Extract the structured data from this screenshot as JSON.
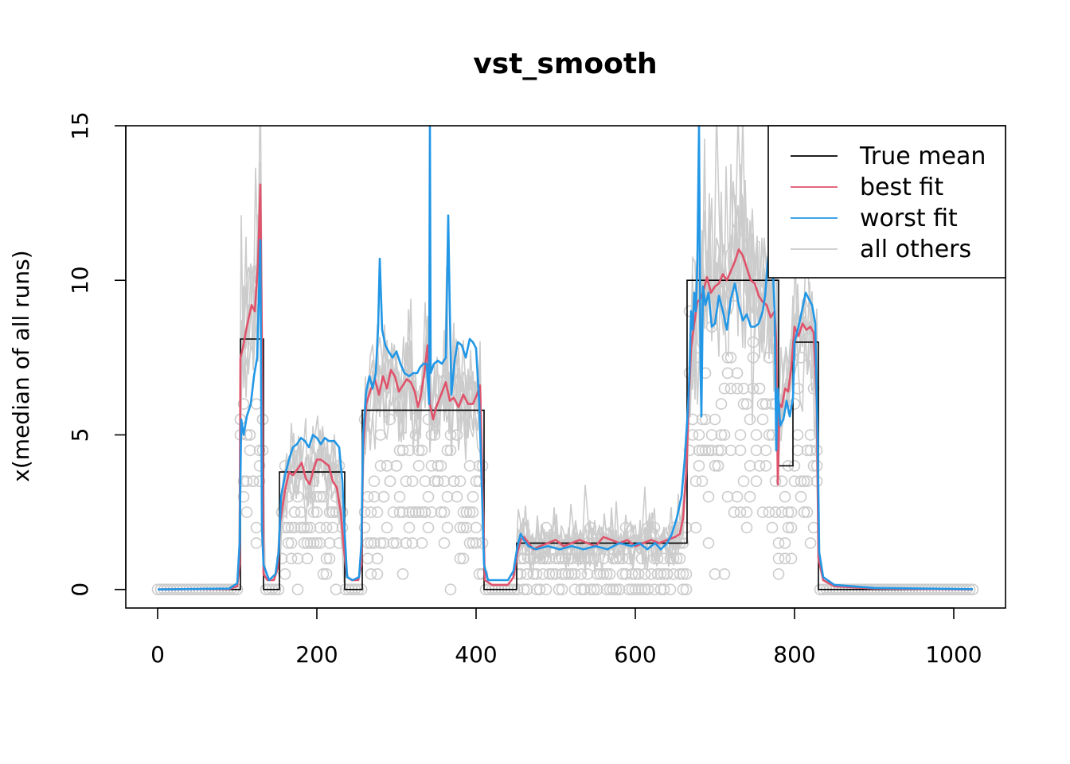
{
  "chart_data": {
    "type": "line",
    "title": "vst_smooth",
    "xlabel": "",
    "ylabel": "x(median of all runs)",
    "xlim": [
      -40,
      1065
    ],
    "ylim": [
      -0.6,
      15
    ],
    "x_ticks": [
      0,
      200,
      400,
      600,
      800,
      1000
    ],
    "y_ticks": [
      0,
      5,
      10,
      15
    ],
    "grid": false,
    "legend": {
      "position": "top-right",
      "entries": [
        "True mean",
        "best fit",
        "worst fit",
        "all others"
      ]
    },
    "colors": {
      "true_mean": "#000000",
      "best_fit": "#DF536B",
      "worst_fit": "#2297E6",
      "others": "#cccccc"
    },
    "true_mean": [
      [
        0,
        0
      ],
      [
        104,
        0
      ],
      [
        104,
        8.1
      ],
      [
        133,
        8.1
      ],
      [
        133,
        0
      ],
      [
        153,
        0
      ],
      [
        153,
        3.8
      ],
      [
        235,
        3.8
      ],
      [
        235,
        0
      ],
      [
        257,
        0
      ],
      [
        257,
        5.8
      ],
      [
        410,
        5.8
      ],
      [
        410,
        0
      ],
      [
        451,
        0
      ],
      [
        451,
        1.5
      ],
      [
        665,
        1.5
      ],
      [
        665,
        10
      ],
      [
        780,
        10
      ],
      [
        780,
        4
      ],
      [
        798,
        4
      ],
      [
        798,
        8
      ],
      [
        830,
        8
      ],
      [
        830,
        0
      ],
      [
        1024,
        0
      ]
    ],
    "series": [
      {
        "name": "best fit",
        "values": [
          [
            0,
            0
          ],
          [
            90,
            0.02
          ],
          [
            100,
            0.1
          ],
          [
            103,
            0.8
          ],
          [
            104,
            7.5
          ],
          [
            107,
            7.8
          ],
          [
            112,
            8.5
          ],
          [
            118,
            9.2
          ],
          [
            122,
            9.0
          ],
          [
            126,
            10.5
          ],
          [
            129,
            13.1
          ],
          [
            131,
            8.0
          ],
          [
            133,
            0.5
          ],
          [
            138,
            0.3
          ],
          [
            146,
            0.3
          ],
          [
            151,
            0.7
          ],
          [
            154,
            2.2
          ],
          [
            160,
            3.2
          ],
          [
            165,
            3.8
          ],
          [
            170,
            3.7
          ],
          [
            176,
            3.9
          ],
          [
            181,
            4.1
          ],
          [
            186,
            3.6
          ],
          [
            191,
            3.4
          ],
          [
            196,
            3.9
          ],
          [
            200,
            4.2
          ],
          [
            205,
            4.2
          ],
          [
            210,
            4.1
          ],
          [
            215,
            4.0
          ],
          [
            220,
            3.5
          ],
          [
            225,
            3.3
          ],
          [
            230,
            2.5
          ],
          [
            234,
            1.3
          ],
          [
            238,
            0.4
          ],
          [
            244,
            0.3
          ],
          [
            252,
            0.3
          ],
          [
            256,
            0.8
          ],
          [
            258,
            4.5
          ],
          [
            262,
            6.0
          ],
          [
            268,
            6.5
          ],
          [
            273,
            6.8
          ],
          [
            278,
            6.3
          ],
          [
            283,
            6.9
          ],
          [
            288,
            6.5
          ],
          [
            293,
            7.1
          ],
          [
            298,
            6.9
          ],
          [
            303,
            6.4
          ],
          [
            308,
            6.6
          ],
          [
            313,
            6.8
          ],
          [
            318,
            6.7
          ],
          [
            323,
            6.4
          ],
          [
            327,
            5.9
          ],
          [
            330,
            6.2
          ],
          [
            335,
            7.0
          ],
          [
            339,
            7.9
          ],
          [
            342,
            6.0
          ],
          [
            346,
            5.5
          ],
          [
            350,
            5.9
          ],
          [
            356,
            6.3
          ],
          [
            362,
            6.7
          ],
          [
            367,
            6.1
          ],
          [
            372,
            6.2
          ],
          [
            378,
            5.9
          ],
          [
            384,
            6.3
          ],
          [
            390,
            6.0
          ],
          [
            396,
            6.0
          ],
          [
            401,
            6.3
          ],
          [
            405,
            6.6
          ],
          [
            408,
            3.5
          ],
          [
            411,
            0.3
          ],
          [
            420,
            0.15
          ],
          [
            440,
            0.15
          ],
          [
            447,
            0.4
          ],
          [
            452,
            1.2
          ],
          [
            456,
            1.6
          ],
          [
            460,
            1.7
          ],
          [
            466,
            1.5
          ],
          [
            472,
            1.3
          ],
          [
            480,
            1.4
          ],
          [
            490,
            1.5
          ],
          [
            500,
            1.6
          ],
          [
            510,
            1.4
          ],
          [
            520,
            1.5
          ],
          [
            530,
            1.6
          ],
          [
            540,
            1.5
          ],
          [
            550,
            1.4
          ],
          [
            560,
            1.7
          ],
          [
            570,
            1.6
          ],
          [
            580,
            1.5
          ],
          [
            590,
            1.6
          ],
          [
            600,
            1.4
          ],
          [
            610,
            1.5
          ],
          [
            620,
            1.6
          ],
          [
            630,
            1.5
          ],
          [
            640,
            1.6
          ],
          [
            650,
            1.7
          ],
          [
            656,
            1.8
          ],
          [
            660,
            2.3
          ],
          [
            664,
            3.8
          ],
          [
            667,
            6.0
          ],
          [
            670,
            7.8
          ],
          [
            674,
            8.6
          ],
          [
            678,
            9.3
          ],
          [
            682,
            9.4
          ],
          [
            686,
            9.7
          ],
          [
            690,
            10.1
          ],
          [
            695,
            9.6
          ],
          [
            700,
            9.8
          ],
          [
            705,
            9.9
          ],
          [
            710,
            10.2
          ],
          [
            715,
            10.0
          ],
          [
            720,
            10.3
          ],
          [
            725,
            10.6
          ],
          [
            730,
            11.0
          ],
          [
            735,
            10.8
          ],
          [
            740,
            10.4
          ],
          [
            745,
            10.0
          ],
          [
            750,
            9.9
          ],
          [
            755,
            9.5
          ],
          [
            760,
            9.3
          ],
          [
            765,
            9.2
          ],
          [
            770,
            8.8
          ],
          [
            775,
            9.0
          ],
          [
            777,
            8.0
          ],
          [
            779,
            3.4
          ],
          [
            781,
            6.0
          ],
          [
            784,
            5.9
          ],
          [
            788,
            6.5
          ],
          [
            792,
            6.4
          ],
          [
            796,
            7.2
          ],
          [
            800,
            8.5
          ],
          [
            805,
            8.2
          ],
          [
            810,
            8.6
          ],
          [
            815,
            8.4
          ],
          [
            820,
            8.5
          ],
          [
            824,
            8.3
          ],
          [
            828,
            6.0
          ],
          [
            830,
            1.0
          ],
          [
            836,
            0.3
          ],
          [
            850,
            0.1
          ],
          [
            900,
            0.03
          ],
          [
            1024,
            0.0
          ]
        ]
      },
      {
        "name": "worst fit",
        "values": [
          [
            0,
            0
          ],
          [
            90,
            0.03
          ],
          [
            100,
            0.2
          ],
          [
            103,
            1.5
          ],
          [
            105,
            5.5
          ],
          [
            108,
            5.0
          ],
          [
            112,
            5.6
          ],
          [
            117,
            6.0
          ],
          [
            121,
            6.9
          ],
          [
            125,
            7.5
          ],
          [
            129,
            11.3
          ],
          [
            131,
            2.0
          ],
          [
            133,
            0.8
          ],
          [
            140,
            0.3
          ],
          [
            148,
            0.5
          ],
          [
            152,
            1.2
          ],
          [
            155,
            3.0
          ],
          [
            160,
            3.7
          ],
          [
            165,
            4.2
          ],
          [
            170,
            4.6
          ],
          [
            175,
            4.7
          ],
          [
            180,
            4.9
          ],
          [
            185,
            4.8
          ],
          [
            190,
            4.6
          ],
          [
            195,
            5.0
          ],
          [
            200,
            4.9
          ],
          [
            205,
            4.7
          ],
          [
            210,
            4.9
          ],
          [
            215,
            4.8
          ],
          [
            222,
            4.8
          ],
          [
            228,
            4.6
          ],
          [
            232,
            3.5
          ],
          [
            235,
            1.8
          ],
          [
            238,
            0.4
          ],
          [
            245,
            0.3
          ],
          [
            253,
            0.4
          ],
          [
            256,
            1.5
          ],
          [
            258,
            5.0
          ],
          [
            262,
            6.4
          ],
          [
            266,
            6.9
          ],
          [
            270,
            6.5
          ],
          [
            274,
            7.0
          ],
          [
            277,
            8.5
          ],
          [
            279,
            10.7
          ],
          [
            282,
            8.4
          ],
          [
            286,
            7.9
          ],
          [
            290,
            7.7
          ],
          [
            295,
            7.5
          ],
          [
            300,
            7.7
          ],
          [
            305,
            7.3
          ],
          [
            310,
            7.0
          ],
          [
            316,
            6.9
          ],
          [
            321,
            7.0
          ],
          [
            326,
            7.0
          ],
          [
            330,
            7.2
          ],
          [
            334,
            7.3
          ],
          [
            338,
            7.3
          ],
          [
            341,
            6.0
          ],
          [
            342,
            15.0
          ],
          [
            343,
            7.0
          ],
          [
            347,
            7.3
          ],
          [
            352,
            7.4
          ],
          [
            357,
            7.3
          ],
          [
            362,
            7.5
          ],
          [
            365,
            12.1
          ],
          [
            367,
            9.0
          ],
          [
            369,
            6.3
          ],
          [
            373,
            7.4
          ],
          [
            377,
            8.0
          ],
          [
            382,
            7.9
          ],
          [
            387,
            7.5
          ],
          [
            392,
            8.1
          ],
          [
            396,
            8.0
          ],
          [
            400,
            7.8
          ],
          [
            404,
            6.0
          ],
          [
            407,
            3.5
          ],
          [
            410,
            0.8
          ],
          [
            415,
            0.3
          ],
          [
            440,
            0.3
          ],
          [
            447,
            0.6
          ],
          [
            452,
            1.4
          ],
          [
            456,
            1.8
          ],
          [
            460,
            1.6
          ],
          [
            466,
            1.4
          ],
          [
            475,
            1.3
          ],
          [
            490,
            1.4
          ],
          [
            505,
            1.3
          ],
          [
            520,
            1.4
          ],
          [
            535,
            1.3
          ],
          [
            550,
            1.4
          ],
          [
            565,
            1.3
          ],
          [
            580,
            1.5
          ],
          [
            595,
            1.4
          ],
          [
            605,
            1.5
          ],
          [
            615,
            1.3
          ],
          [
            625,
            1.5
          ],
          [
            632,
            1.3
          ],
          [
            640,
            1.5
          ],
          [
            646,
            1.8
          ],
          [
            652,
            2.3
          ],
          [
            658,
            3.0
          ],
          [
            662,
            4.2
          ],
          [
            666,
            5.8
          ],
          [
            668,
            7.0
          ],
          [
            670,
            9.0
          ],
          [
            672,
            8.4
          ],
          [
            674,
            9.6
          ],
          [
            676,
            9.0
          ],
          [
            678,
            10.6
          ],
          [
            680,
            15.0
          ],
          [
            682,
            7.0
          ],
          [
            683,
            5.6
          ],
          [
            685,
            9.8
          ],
          [
            688,
            9.2
          ],
          [
            692,
            9.6
          ],
          [
            696,
            8.5
          ],
          [
            700,
            8.6
          ],
          [
            705,
            9.5
          ],
          [
            710,
            9.0
          ],
          [
            715,
            8.4
          ],
          [
            720,
            9.4
          ],
          [
            725,
            9.9
          ],
          [
            730,
            9.2
          ],
          [
            735,
            8.7
          ],
          [
            740,
            8.9
          ],
          [
            745,
            8.5
          ],
          [
            750,
            8.5
          ],
          [
            755,
            8.6
          ],
          [
            760,
            9.0
          ],
          [
            763,
            9.5
          ],
          [
            766,
            10.5
          ],
          [
            769,
            11.1
          ],
          [
            772,
            10.8
          ],
          [
            775,
            9.0
          ],
          [
            777,
            4.5
          ],
          [
            779,
            6.5
          ],
          [
            782,
            5.3
          ],
          [
            786,
            5.5
          ],
          [
            790,
            6.1
          ],
          [
            794,
            5.6
          ],
          [
            798,
            6.2
          ],
          [
            800,
            8.0
          ],
          [
            805,
            8.5
          ],
          [
            810,
            9.1
          ],
          [
            814,
            9.6
          ],
          [
            818,
            9.4
          ],
          [
            822,
            9.2
          ],
          [
            826,
            8.6
          ],
          [
            829,
            5.0
          ],
          [
            831,
            1.2
          ],
          [
            836,
            0.4
          ],
          [
            850,
            0.15
          ],
          [
            900,
            0.05
          ],
          [
            1024,
            0.01
          ]
        ]
      }
    ]
  }
}
